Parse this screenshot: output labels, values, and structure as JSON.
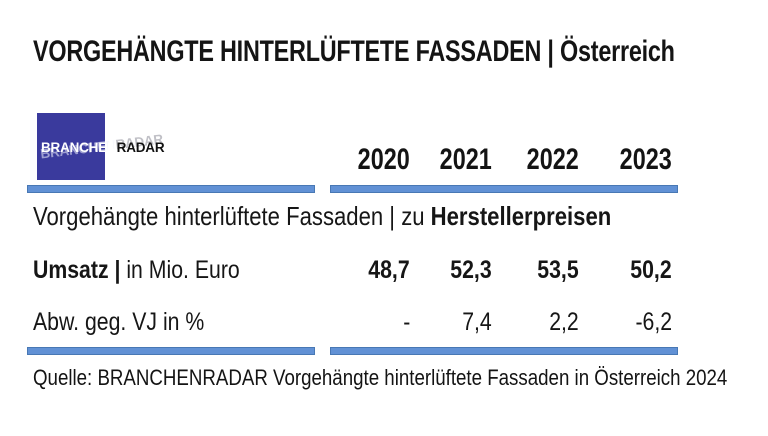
{
  "title": "VORGEHÄNGTE HINTERLÜFTETE FASSADEN | Österreich",
  "logo": {
    "primary": "BRANCHEN",
    "secondary": "RADAR"
  },
  "colors": {
    "accent_bar": "#6191d5",
    "accent_bar_border": "#4878b4",
    "logo_blue": "#3a3a9d"
  },
  "table": {
    "years": [
      "2020",
      "2021",
      "2022",
      "2023"
    ],
    "section_label": "Vorgehängte hinterlüftete Fassaden | zu ",
    "section_label_bold": "Herstellerpreisen",
    "rows": [
      {
        "label_bold": "Umsatz |",
        "label": " in Mio. Euro",
        "values": [
          "48,7",
          "52,3",
          "53,5",
          "50,2"
        ]
      },
      {
        "label_bold": "",
        "label": "Abw. geg. VJ in %",
        "values": [
          "-",
          "7,4",
          "2,2",
          "-6,2"
        ]
      }
    ]
  },
  "source": "Quelle: BRANCHENRADAR Vorgehängte hinterlüftete Fassaden in Österreich 2024",
  "chart_data": {
    "type": "table",
    "title": "VORGEHÄNGTE HINTERLÜFTETE FASSADEN | Österreich",
    "section": "Vorgehängte hinterlüftete Fassaden | zu Herstellerpreisen",
    "categories": [
      "2020",
      "2021",
      "2022",
      "2023"
    ],
    "series": [
      {
        "name": "Umsatz | in Mio. Euro",
        "values": [
          48.7,
          52.3,
          53.5,
          50.2
        ]
      },
      {
        "name": "Abw. geg. VJ in %",
        "values": [
          null,
          7.4,
          2.2,
          -6.2
        ]
      }
    ],
    "source": "Quelle: BRANCHENRADAR Vorgehängte hinterlüftete Fassaden in Österreich 2024"
  }
}
